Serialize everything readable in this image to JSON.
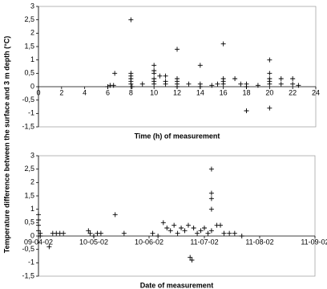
{
  "ylabel": "Temperature difference between the surface and 3 m depth (°C)",
  "chart_data": [
    {
      "type": "scatter",
      "xlabel": "Time (h) of measurement",
      "color": "#000000",
      "xlim": [
        0,
        24
      ],
      "xticks": [
        0,
        2,
        4,
        6,
        8,
        10,
        12,
        14,
        16,
        18,
        20,
        22,
        24
      ],
      "ylim": [
        -1.5,
        3
      ],
      "yticks": [
        {
          "value": -1.5,
          "label": "-1,5"
        },
        -1,
        {
          "value": -0.5,
          "label": "-0,5"
        },
        0,
        {
          "value": 0.5,
          "label": "0,5"
        },
        1,
        {
          "value": 1.5,
          "label": "1,5"
        },
        2,
        {
          "value": 2.5,
          "label": "2,5"
        },
        3
      ],
      "x": [
        6,
        6.2,
        6.5,
        6.6,
        8,
        8,
        8,
        8,
        8,
        8,
        8.1,
        9,
        10,
        10,
        10,
        10,
        10,
        10,
        10.5,
        11,
        11,
        11,
        12,
        12,
        12,
        12,
        12,
        13,
        14,
        14,
        14,
        15,
        15.5,
        16,
        16,
        16,
        16,
        17,
        17.5,
        18,
        18,
        18,
        19,
        20,
        20,
        20,
        20,
        20,
        20,
        21,
        21,
        22,
        22,
        22.5
      ],
      "y": [
        0,
        0.05,
        0.05,
        0.5,
        2.5,
        0.5,
        0.4,
        0.3,
        0.2,
        0.1,
        0,
        0.1,
        0.8,
        0.6,
        0.5,
        0.3,
        0.2,
        0.1,
        0.4,
        0.4,
        0.2,
        0.1,
        1.4,
        0.3,
        0.2,
        0.1,
        0,
        0.1,
        0.8,
        0.1,
        0,
        0.05,
        0.1,
        1.6,
        0.3,
        0.2,
        0.1,
        0.3,
        0.1,
        -0.9,
        0.1,
        0,
        0.05,
        1.0,
        0.5,
        0.3,
        0.2,
        0.1,
        -0.8,
        0.3,
        0.1,
        0.3,
        0.1,
        0.05
      ]
    },
    {
      "type": "scatter",
      "xlabel": "Date of measurement",
      "color": "#000000",
      "xlim": [
        "2002-04-09",
        "2002-09-11"
      ],
      "xticks": [
        {
          "value": "2002-04-09",
          "label": "09-04-02"
        },
        {
          "value": "2002-05-10",
          "label": "10-05-02"
        },
        {
          "value": "2002-06-10",
          "label": "10-06-02"
        },
        {
          "value": "2002-07-11",
          "label": "11-07-02"
        },
        {
          "value": "2002-08-11",
          "label": "11-08-02"
        },
        {
          "value": "2002-09-11",
          "label": "11-09-02"
        }
      ],
      "ylim": [
        -1.5,
        3
      ],
      "yticks": [
        {
          "value": -1.5,
          "label": "-1,5"
        },
        -1,
        {
          "value": -0.5,
          "label": "-0,5"
        },
        0,
        {
          "value": 0.5,
          "label": "0,5"
        },
        1,
        {
          "value": 1.5,
          "label": "1,5"
        },
        2,
        {
          "value": 2.5,
          "label": "2,5"
        },
        3
      ],
      "x": [
        "2002-04-09",
        "2002-04-09",
        "2002-04-09",
        "2002-04-09",
        "2002-04-10",
        "2002-04-10",
        "2002-04-15",
        "2002-04-17",
        "2002-04-19",
        "2002-04-21",
        "2002-04-23",
        "2002-05-07",
        "2002-05-08",
        "2002-05-10",
        "2002-05-12",
        "2002-05-14",
        "2002-05-22",
        "2002-05-27",
        "2002-06-12",
        "2002-06-15",
        "2002-06-18",
        "2002-06-20",
        "2002-06-22",
        "2002-06-24",
        "2002-06-26",
        "2002-06-28",
        "2002-06-30",
        "2002-07-02",
        "2002-07-03",
        "2002-07-04",
        "2002-07-05",
        "2002-07-07",
        "2002-07-09",
        "2002-07-11",
        "2002-07-13",
        "2002-07-15",
        "2002-07-15",
        "2002-07-15",
        "2002-07-15",
        "2002-07-15",
        "2002-07-18",
        "2002-07-20",
        "2002-07-22",
        "2002-07-25",
        "2002-07-28",
        "2002-08-01"
      ],
      "y": [
        0.8,
        0.6,
        0.4,
        0.2,
        0.1,
        0,
        -0.4,
        0.1,
        0.1,
        0.1,
        0.1,
        0.2,
        0.1,
        0,
        0.1,
        0.1,
        0.8,
        0.1,
        0.1,
        0,
        0.5,
        0.3,
        0.2,
        0.4,
        0.1,
        0.3,
        0.2,
        0.4,
        -0.8,
        -0.9,
        0.3,
        0.1,
        0.2,
        0.3,
        0.1,
        2.5,
        1.6,
        1.4,
        1.0,
        0.2,
        0.4,
        0.4,
        0.1,
        0.1,
        0.1,
        0
      ]
    }
  ]
}
